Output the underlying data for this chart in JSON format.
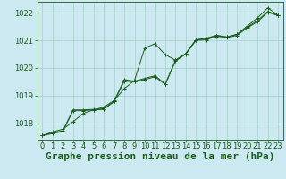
{
  "title": "Graphe pression niveau de la mer (hPa)",
  "background_color": "#cce8f0",
  "plot_bg_color": "#cce8f0",
  "grid_color": "#99ccbb",
  "line_color": "#1a5c1a",
  "marker_color": "#1a5c1a",
  "xlim": [
    -0.5,
    23.5
  ],
  "ylim": [
    1017.4,
    1022.4
  ],
  "yticks": [
    1018,
    1019,
    1020,
    1021,
    1022
  ],
  "xticks": [
    0,
    1,
    2,
    3,
    4,
    5,
    6,
    7,
    8,
    9,
    10,
    11,
    12,
    13,
    14,
    15,
    16,
    17,
    18,
    19,
    20,
    21,
    22,
    23
  ],
  "series1": [
    1017.55,
    1017.68,
    1017.78,
    1018.05,
    1018.35,
    1018.48,
    1018.58,
    1018.82,
    1019.25,
    1019.55,
    1020.72,
    1020.88,
    1020.48,
    1020.28,
    1020.52,
    1021.02,
    1021.08,
    1021.18,
    1021.12,
    1021.22,
    1021.52,
    1021.82,
    1022.18,
    1021.92
  ],
  "series2": [
    1017.55,
    1017.65,
    1017.72,
    1018.48,
    1018.48,
    1018.5,
    1018.52,
    1018.8,
    1019.58,
    1019.52,
    1019.62,
    1019.72,
    1019.42,
    1020.28,
    1020.52,
    1021.02,
    1021.05,
    1021.18,
    1021.12,
    1021.22,
    1021.48,
    1021.72,
    1022.05,
    1021.92
  ],
  "series3": [
    1017.55,
    1017.62,
    1017.7,
    1018.45,
    1018.45,
    1018.48,
    1018.5,
    1018.78,
    1019.52,
    1019.5,
    1019.58,
    1019.68,
    1019.4,
    1020.25,
    1020.5,
    1021.0,
    1021.02,
    1021.15,
    1021.1,
    1021.18,
    1021.45,
    1021.68,
    1022.02,
    1021.9
  ],
  "title_fontsize": 8,
  "tick_fontsize": 6
}
